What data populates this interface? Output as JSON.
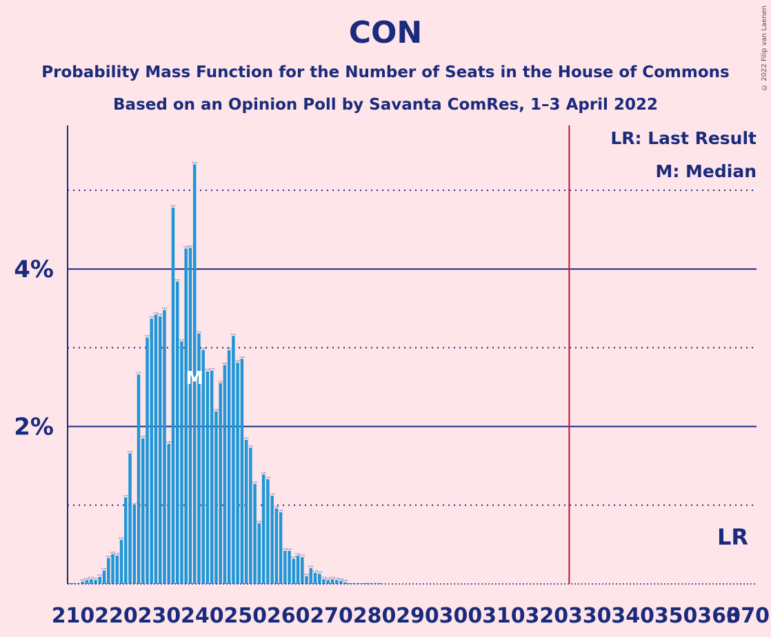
{
  "chart_data": {
    "type": "bar",
    "title": "CON",
    "subtitle_line1": "Probability Mass Function for the Number of Seats in the House of Commons",
    "subtitle_line2": "Based on an Opinion Poll by Savanta ComRes, 1–3 April 2022",
    "copyright": "© 2022 Filip van Laenen",
    "legend": [
      "LR: Last Result",
      "M: Median"
    ],
    "legend_position": "top-right",
    "xlabel": "",
    "ylabel": "",
    "xlim": [
      210,
      370
    ],
    "ylim": [
      0,
      5.8
    ],
    "x_ticks": [
      210,
      220,
      230,
      240,
      250,
      260,
      270,
      280,
      290,
      300,
      310,
      320,
      330,
      340,
      350,
      360,
      370
    ],
    "y_tick_labels": [
      {
        "value": 2,
        "label": "2%"
      },
      {
        "value": 4,
        "label": "4%"
      }
    ],
    "solid_gridlines": [
      2,
      4
    ],
    "dotted_gridlines": [
      1,
      3,
      5
    ],
    "median": 239,
    "median_label": "M",
    "last_result": 326,
    "last_result_label": "LR",
    "bar_color": "#2196d6",
    "lr_line_color": "#c8102e",
    "values_start_seat": 210,
    "values": [
      0.01,
      0.01,
      0.01,
      0.03,
      0.05,
      0.06,
      0.05,
      0.09,
      0.17,
      0.33,
      0.38,
      0.36,
      0.56,
      1.1,
      1.66,
      1.0,
      2.66,
      1.85,
      3.13,
      3.37,
      3.42,
      3.4,
      3.48,
      1.78,
      4.78,
      3.84,
      3.08,
      4.26,
      4.27,
      5.33,
      3.18,
      2.97,
      2.7,
      2.71,
      2.19,
      2.55,
      2.78,
      2.97,
      3.15,
      2.81,
      2.86,
      1.83,
      1.73,
      1.27,
      0.77,
      1.39,
      1.33,
      1.12,
      0.96,
      0.91,
      0.42,
      0.42,
      0.32,
      0.36,
      0.34,
      0.1,
      0.2,
      0.14,
      0.13,
      0.06,
      0.05,
      0.06,
      0.05,
      0.04,
      0.02,
      0.01,
      0.01,
      0.01,
      0.01,
      0.01,
      0.01,
      0.01,
      0.01
    ]
  }
}
